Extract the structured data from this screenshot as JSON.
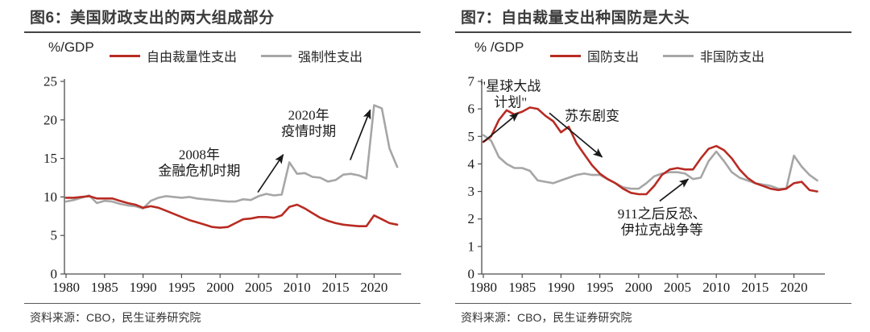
{
  "chart_data": [
    {
      "type": "line",
      "figure_title": "图6：美国财政支出的两大组成部分",
      "ylabel": "%/GDP",
      "ylim": [
        0,
        25
      ],
      "yticks": [
        0,
        5,
        10,
        15,
        20,
        25
      ],
      "xticks": [
        1980,
        1985,
        1990,
        1995,
        2000,
        2005,
        2010,
        2015,
        2020
      ],
      "x": [
        1980,
        1981,
        1982,
        1983,
        1984,
        1985,
        1986,
        1987,
        1988,
        1989,
        1990,
        1991,
        1992,
        1993,
        1994,
        1995,
        1996,
        1997,
        1998,
        1999,
        2000,
        2001,
        2002,
        2003,
        2004,
        2005,
        2006,
        2007,
        2008,
        2009,
        2010,
        2011,
        2012,
        2013,
        2014,
        2015,
        2016,
        2017,
        2018,
        2019,
        2020,
        2021,
        2022,
        2023
      ],
      "series": [
        {
          "name": "自由裁量性支出",
          "color": "#b82b23",
          "values": [
            9.9,
            9.9,
            10.0,
            10.1,
            9.8,
            9.8,
            9.8,
            9.5,
            9.2,
            9.0,
            8.6,
            8.8,
            8.6,
            8.2,
            7.8,
            7.4,
            7.0,
            6.7,
            6.4,
            6.1,
            6.0,
            6.1,
            6.6,
            7.1,
            7.2,
            7.4,
            7.4,
            7.3,
            7.6,
            8.7,
            9.0,
            8.5,
            7.9,
            7.3,
            6.9,
            6.6,
            6.4,
            6.3,
            6.2,
            6.2,
            7.6,
            7.1,
            6.6,
            6.4
          ]
        },
        {
          "name": "强制性支出",
          "color": "#a6a6a6",
          "values": [
            9.4,
            9.6,
            9.9,
            10.2,
            9.2,
            9.5,
            9.4,
            9.1,
            8.9,
            8.8,
            8.5,
            9.5,
            9.9,
            10.1,
            10.0,
            9.9,
            10.0,
            9.8,
            9.7,
            9.6,
            9.5,
            9.4,
            9.4,
            9.7,
            9.6,
            10.1,
            10.4,
            10.2,
            10.3,
            14.5,
            13.0,
            13.1,
            12.6,
            12.5,
            12.0,
            12.2,
            12.9,
            13.0,
            12.8,
            12.4,
            21.9,
            21.5,
            16.3,
            13.9
          ]
        }
      ],
      "annotations": [
        {
          "lines": [
            "2008年",
            "金融危机时期"
          ],
          "x": 1997.3,
          "y": 14.5
        },
        {
          "lines": [
            "2020年",
            "疫情时期"
          ],
          "x": 2011.5,
          "y": 19.6
        }
      ],
      "arrows": [
        {
          "x1": 2004.9,
          "y1": 10.6,
          "x2": 2008.2,
          "y2": 15.5
        },
        {
          "x1": 2016.9,
          "y1": 14.8,
          "x2": 2019.5,
          "y2": 21.3
        }
      ],
      "source": "资料来源：CBO，民生证券研究院"
    },
    {
      "type": "line",
      "figure_title": "图7：自由裁量支出种国防是大头",
      "ylabel": "% /GDP",
      "ylim": [
        0,
        7
      ],
      "yticks": [
        0,
        1,
        2,
        3,
        4,
        5,
        6,
        7
      ],
      "xticks": [
        1980,
        1985,
        1990,
        1995,
        2000,
        2005,
        2010,
        2015,
        2020
      ],
      "x": [
        1980,
        1981,
        1982,
        1983,
        1984,
        1985,
        1986,
        1987,
        1988,
        1989,
        1990,
        1991,
        1992,
        1993,
        1994,
        1995,
        1996,
        1997,
        1998,
        1999,
        2000,
        2001,
        2002,
        2003,
        2004,
        2005,
        2006,
        2007,
        2008,
        2009,
        2010,
        2011,
        2012,
        2013,
        2014,
        2015,
        2016,
        2017,
        2018,
        2019,
        2020,
        2021,
        2022,
        2023
      ],
      "series": [
        {
          "name": "国防支出",
          "color": "#b82b23",
          "values": [
            4.8,
            5.0,
            5.6,
            5.95,
            5.8,
            5.9,
            6.05,
            6.0,
            5.75,
            5.55,
            5.15,
            5.35,
            4.75,
            4.35,
            3.95,
            3.65,
            3.45,
            3.3,
            3.1,
            2.95,
            2.9,
            2.9,
            3.2,
            3.6,
            3.8,
            3.85,
            3.8,
            3.8,
            4.2,
            4.55,
            4.65,
            4.5,
            4.2,
            3.8,
            3.5,
            3.3,
            3.2,
            3.1,
            3.05,
            3.1,
            3.3,
            3.35,
            3.05,
            3.0
          ]
        },
        {
          "name": "非国防支出",
          "color": "#a6a6a6",
          "values": [
            5.05,
            4.85,
            4.25,
            4.0,
            3.85,
            3.85,
            3.75,
            3.4,
            3.35,
            3.3,
            3.4,
            3.5,
            3.6,
            3.65,
            3.6,
            3.6,
            3.45,
            3.3,
            3.15,
            3.1,
            3.1,
            3.3,
            3.55,
            3.65,
            3.7,
            3.7,
            3.65,
            3.45,
            3.5,
            4.1,
            4.45,
            4.1,
            3.7,
            3.5,
            3.4,
            3.3,
            3.25,
            3.2,
            3.1,
            3.1,
            4.3,
            3.9,
            3.6,
            3.4
          ]
        }
      ],
      "annotations": [
        {
          "lines": [
            "\"星球大战",
            "计划\""
          ],
          "x": 1983.5,
          "y": 6.55
        },
        {
          "lines": [
            "苏东剧变"
          ],
          "x": 1994.0,
          "y": 5.75
        },
        {
          "lines": [
            "911之后反恐、",
            "伊拉克战争等"
          ],
          "x": 2003.0,
          "y": 1.9
        }
      ],
      "arrows": [
        {
          "x1": 1980.0,
          "y1": 4.8,
          "x2": 1984.5,
          "y2": 5.85
        },
        {
          "x1": 1988.5,
          "y1": 5.85,
          "x2": 1995.3,
          "y2": 4.25
        },
        {
          "x1": 2002.7,
          "y1": 2.65,
          "x2": 2006.4,
          "y2": 3.45
        }
      ],
      "source": "资料来源：CBO，民生证券研究院"
    }
  ]
}
